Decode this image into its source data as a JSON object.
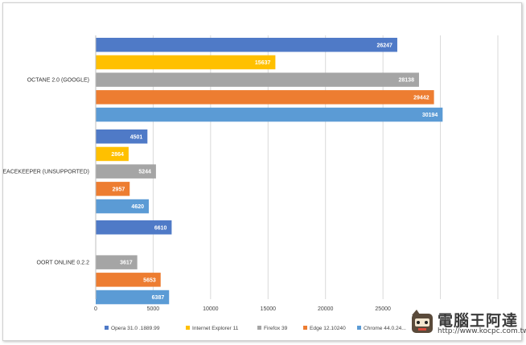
{
  "chart_data": {
    "type": "bar",
    "orientation": "horizontal",
    "title": "",
    "xlabel": "",
    "ylabel": "",
    "categories": [
      "OCTANE 2.0 (GOOGLE)",
      "PEACEKEEPER (UNSUPPORTED)",
      "OORT ONLINE 0.2.2"
    ],
    "xlim": [
      0,
      35000
    ],
    "x_ticks": [
      0,
      5000,
      10000,
      15000,
      20000,
      25000
    ],
    "grid": true,
    "legend_position": "bottom",
    "series": [
      {
        "name": "Opera 31.0 .1889.99",
        "color": "#4f7ac7",
        "values": [
          26247,
          4501,
          6610
        ]
      },
      {
        "name": "Internet Explorer 11",
        "color": "#ffc000",
        "values": [
          15637,
          2864,
          0
        ]
      },
      {
        "name": "Firefox 39",
        "color": "#a5a5a5",
        "values": [
          28138,
          5244,
          3617
        ]
      },
      {
        "name": "Edge 12.10240",
        "color": "#ed7d31",
        "values": [
          29442,
          2957,
          5653
        ]
      },
      {
        "name": "Chrome 44.0.24...",
        "color": "#5b9bd5",
        "values": [
          30194,
          4620,
          6387
        ]
      }
    ]
  },
  "watermark": {
    "text": "電腦王阿達",
    "url": "http://www.kocpc.com.tw"
  }
}
